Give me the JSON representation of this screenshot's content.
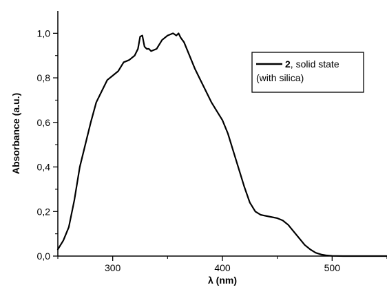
{
  "chart_data": {
    "type": "line",
    "xlabel": "λ (nm)",
    "ylabel": "Absorbance (a.u.)",
    "xlim": [
      250,
      550
    ],
    "ylim": [
      0.0,
      1.1
    ],
    "x_ticks": [
      300,
      400,
      500
    ],
    "x_tick_labels": [
      "300",
      "400",
      "500"
    ],
    "y_ticks": [
      0.0,
      0.2,
      0.4,
      0.6,
      0.8,
      1.0
    ],
    "y_tick_labels": [
      "0,0",
      "0,2",
      "0,4",
      "0,6",
      "0,8",
      "1,0"
    ],
    "grid": false,
    "legend": {
      "placement": "top-right",
      "entry_bold": "2",
      "entry_line1_rest": ", solid state",
      "entry_line2": "(with silica)"
    },
    "line_color": "#000000",
    "series": [
      {
        "x": [
          250,
          255,
          260,
          265,
          270,
          275,
          280,
          285,
          290,
          295,
          300,
          305,
          310,
          315,
          320,
          323,
          325,
          327,
          329,
          331,
          333,
          335,
          340,
          345,
          350,
          355,
          358,
          360,
          362,
          365,
          370,
          375,
          380,
          385,
          390,
          395,
          400,
          405,
          410,
          415,
          420,
          425,
          430,
          435,
          440,
          445,
          450,
          455,
          460,
          465,
          470,
          475,
          480,
          485,
          490,
          495,
          500,
          510,
          520,
          530,
          540,
          550
        ],
        "y": [
          0.03,
          0.07,
          0.13,
          0.25,
          0.4,
          0.5,
          0.6,
          0.69,
          0.74,
          0.79,
          0.81,
          0.83,
          0.87,
          0.88,
          0.9,
          0.93,
          0.985,
          0.99,
          0.94,
          0.93,
          0.93,
          0.92,
          0.93,
          0.97,
          0.99,
          1.0,
          0.99,
          1.0,
          0.98,
          0.96,
          0.9,
          0.84,
          0.79,
          0.74,
          0.69,
          0.65,
          0.61,
          0.55,
          0.47,
          0.39,
          0.31,
          0.24,
          0.2,
          0.185,
          0.18,
          0.175,
          0.17,
          0.16,
          0.14,
          0.11,
          0.08,
          0.05,
          0.03,
          0.015,
          0.007,
          0.003,
          0.001,
          0.0,
          0.0,
          0.0,
          0.0,
          0.0
        ]
      }
    ]
  }
}
